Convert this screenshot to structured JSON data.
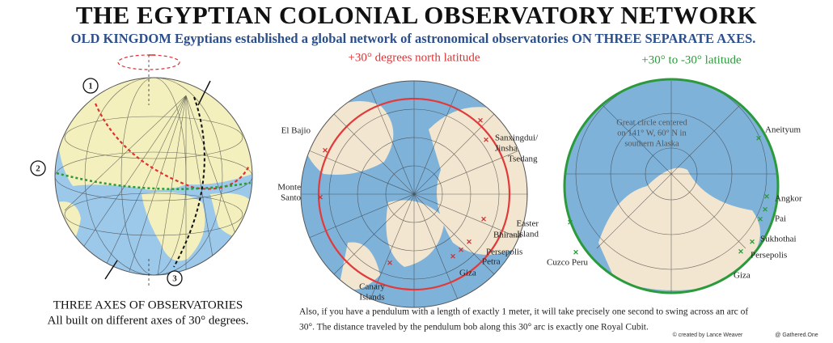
{
  "header": {
    "title": "THE EGYPTIAN COLONIAL OBSERVATORY NETWORK",
    "subtitle": "OLD KINGDOM Egyptians established a global network of astronomical observatories ON THREE SEPARATE AXES."
  },
  "globe": {
    "markers": [
      "1",
      "2",
      "3"
    ],
    "caption": [
      "THREE AXES OF OBSERVATORIES",
      "All built on different axes of 30° degrees."
    ]
  },
  "north_map": {
    "heading": "+30° degrees north latitude",
    "sites": [
      [
        "El Bajio"
      ],
      [
        "Monte",
        "Santo"
      ],
      [
        "Canary",
        "Islands"
      ],
      [
        "Sanxingdui/",
        "Jinsha"
      ],
      [
        "Tsedang"
      ],
      [
        "Bhirana"
      ],
      [
        "Persepolis"
      ],
      [
        "Petra"
      ],
      [
        "Giza"
      ]
    ]
  },
  "great_circle_map": {
    "heading": "+30° to -30° latitude",
    "annotation": [
      "Great circle centered",
      "on 141° W, 60° N in",
      "southern Alaska"
    ],
    "sites": [
      [
        "Aneityum"
      ],
      [
        "Angkor"
      ],
      [
        "Pai"
      ],
      [
        "Sukhothai"
      ],
      [
        "Persepolis"
      ],
      [
        "Giza"
      ],
      [
        "Easter",
        "Island"
      ],
      [
        "Cuzco Peru"
      ]
    ]
  },
  "note": [
    "Also, if  you have a pendulum with a length of  exactly 1 meter, it will take precisely one second to swing across an arc of",
    "30°. The distance traveled by the pendulum bob along this 30° arc is exactly one Royal Cubit."
  ],
  "credits": [
    "© created by Lance Weaver",
    "@ Gathered.One"
  ]
}
